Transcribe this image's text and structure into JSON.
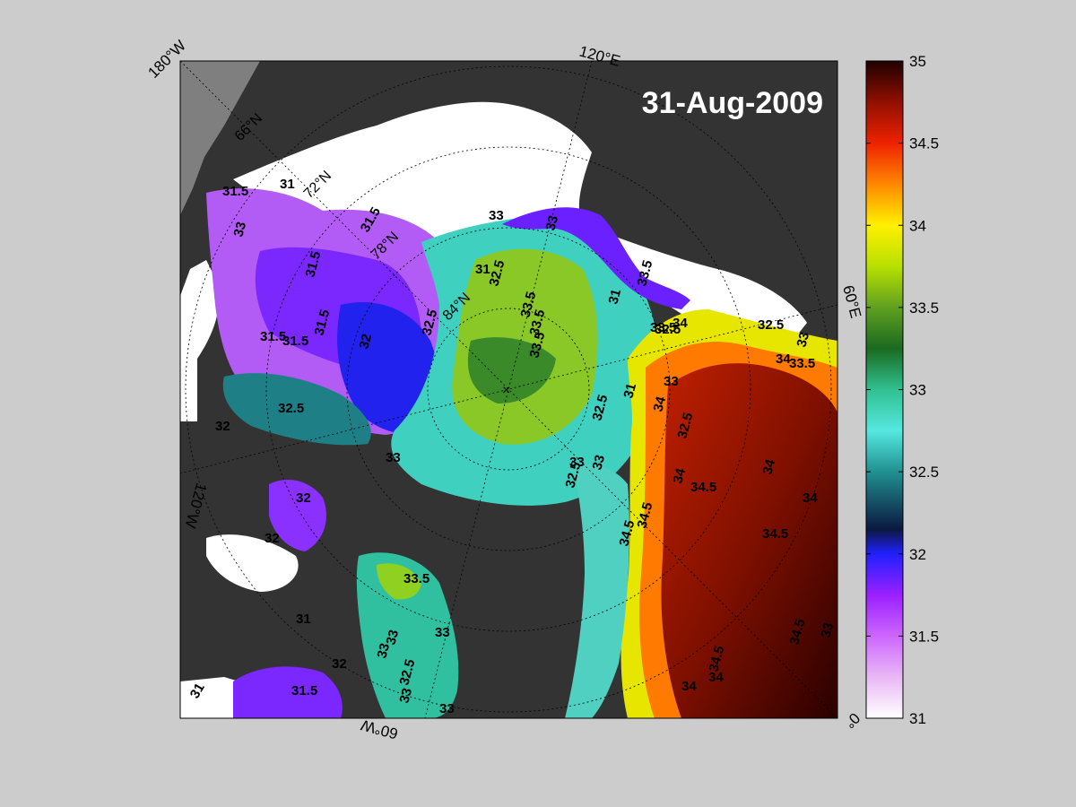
{
  "map": {
    "date_label": "31-Aug-2009",
    "center_marker": "×",
    "longitude_labels": [
      "180°W",
      "120°E",
      "60°E",
      "0°",
      "60°W",
      "120°W"
    ],
    "latitude_labels": [
      "66°N",
      "72°N",
      "78°N",
      "84°N"
    ],
    "colors": {
      "land": "#333333",
      "ice": "#ffffff",
      "outside": "#7f7f7f",
      "figure_background": "#cccccc"
    }
  },
  "contour_labels": [
    {
      "region": "beaufort-west",
      "text": "31.5"
    },
    {
      "region": "beaufort-north",
      "text": "31"
    },
    {
      "region": "beaufort-coast",
      "text": "33"
    },
    {
      "region": "canada-basin",
      "text": "31.5"
    },
    {
      "region": "canada-basin",
      "text": "31.5"
    },
    {
      "region": "canada-basin",
      "text": "31.5"
    },
    {
      "region": "canada-basin",
      "text": "31.5"
    },
    {
      "region": "canada-basin",
      "text": "31.5"
    },
    {
      "region": "canada-basin",
      "text": "32"
    },
    {
      "region": "canada-basin",
      "text": "32.5"
    },
    {
      "region": "canada-basin",
      "text": "32.5"
    },
    {
      "region": "canada-basin",
      "text": "32"
    },
    {
      "region": "canada-basin",
      "text": "33"
    },
    {
      "region": "canada-basin",
      "text": "31"
    },
    {
      "region": "makarov",
      "text": "33"
    },
    {
      "region": "makarov",
      "text": "33"
    },
    {
      "region": "laptev",
      "text": "31"
    },
    {
      "region": "laptev",
      "text": "32.5"
    },
    {
      "region": "eurasian-basin",
      "text": "33.5"
    },
    {
      "region": "eurasian-basin",
      "text": "33.5"
    },
    {
      "region": "eurasian-basin",
      "text": "33.5"
    },
    {
      "region": "eurasian-basin",
      "text": "33.5"
    },
    {
      "region": "eurasian-basin",
      "text": "32.5"
    },
    {
      "region": "kara",
      "text": "32.5"
    },
    {
      "region": "kara",
      "text": "31"
    },
    {
      "region": "kara",
      "text": "33.5"
    },
    {
      "region": "kara",
      "text": "33"
    },
    {
      "region": "kara",
      "text": "34"
    },
    {
      "region": "kara",
      "text": "33"
    },
    {
      "region": "kara",
      "text": "32.5"
    },
    {
      "region": "kara",
      "text": "33"
    },
    {
      "region": "kara",
      "text": "32.5"
    },
    {
      "region": "barents",
      "text": "33.5"
    },
    {
      "region": "barents",
      "text": "34"
    },
    {
      "region": "barents",
      "text": "33"
    },
    {
      "region": "barents",
      "text": "32.5"
    },
    {
      "region": "barents",
      "text": "34"
    },
    {
      "region": "barents",
      "text": "34.5"
    },
    {
      "region": "barents",
      "text": "34.5"
    },
    {
      "region": "barents",
      "text": "34.5"
    },
    {
      "region": "barents",
      "text": "34.5"
    },
    {
      "region": "barents",
      "text": "34"
    },
    {
      "region": "barents",
      "text": "34"
    },
    {
      "region": "barents",
      "text": "34"
    },
    {
      "region": "barents",
      "text": "34"
    },
    {
      "region": "barents",
      "text": "34"
    },
    {
      "region": "barents",
      "text": "34.5"
    },
    {
      "region": "barents",
      "text": "34.5"
    },
    {
      "region": "barents",
      "text": "33"
    },
    {
      "region": "archipelago",
      "text": "33"
    },
    {
      "region": "archipelago",
      "text": "32"
    },
    {
      "region": "archipelago",
      "text": "32"
    },
    {
      "region": "archipelago",
      "text": "31"
    },
    {
      "region": "archipelago",
      "text": "32"
    },
    {
      "region": "archipelago",
      "text": "31.5"
    },
    {
      "region": "archipelago",
      "text": "31"
    },
    {
      "region": "baffin",
      "text": "33.5"
    },
    {
      "region": "baffin",
      "text": "33"
    },
    {
      "region": "baffin",
      "text": "33"
    },
    {
      "region": "baffin",
      "text": "33"
    },
    {
      "region": "baffin",
      "text": "32.5"
    },
    {
      "region": "baffin",
      "text": "33"
    }
  ],
  "colorbar": {
    "min": 31,
    "max": 35,
    "tick_labels": [
      "35",
      "34.5",
      "34",
      "33.5",
      "33",
      "32.5",
      "32",
      "31.5",
      "31"
    ],
    "stops": [
      {
        "value": 31.0,
        "color": "#ffffff"
      },
      {
        "value": 31.25,
        "color": "#e9b8f5"
      },
      {
        "value": 31.5,
        "color": "#cc66ff"
      },
      {
        "value": 31.75,
        "color": "#9a20ff"
      },
      {
        "value": 32.0,
        "color": "#2020ff"
      },
      {
        "value": 32.15,
        "color": "#0b1840"
      },
      {
        "value": 32.5,
        "color": "#209090"
      },
      {
        "value": 32.75,
        "color": "#55e8e0"
      },
      {
        "value": 33.0,
        "color": "#30c090"
      },
      {
        "value": 33.25,
        "color": "#1a6a20"
      },
      {
        "value": 33.5,
        "color": "#60a020"
      },
      {
        "value": 33.75,
        "color": "#b8e000"
      },
      {
        "value": 34.0,
        "color": "#fff000"
      },
      {
        "value": 34.25,
        "color": "#ff8800"
      },
      {
        "value": 34.5,
        "color": "#ee2200"
      },
      {
        "value": 34.75,
        "color": "#901000"
      },
      {
        "value": 35.0,
        "color": "#200000"
      }
    ]
  }
}
